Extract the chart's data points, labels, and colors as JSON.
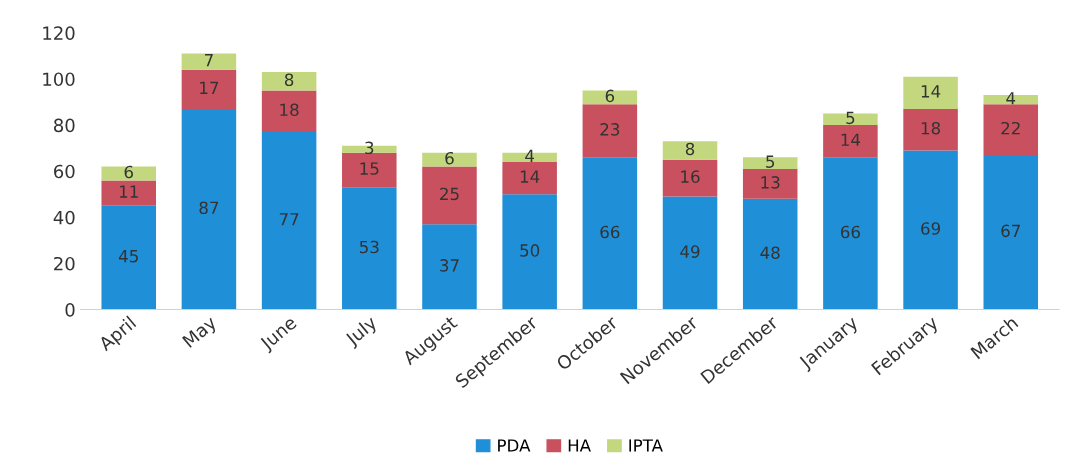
{
  "chart_data": {
    "type": "bar",
    "stacked": true,
    "categories": [
      "April",
      "May",
      "June",
      "July",
      "August",
      "September",
      "October",
      "November",
      "December",
      "January",
      "February",
      "March"
    ],
    "series": [
      {
        "name": "PDA",
        "color": "#1f8fd8",
        "values": [
          45,
          87,
          77,
          53,
          37,
          50,
          66,
          49,
          48,
          66,
          69,
          67
        ]
      },
      {
        "name": "HA",
        "color": "#c9505e",
        "values": [
          11,
          17,
          18,
          15,
          25,
          14,
          23,
          16,
          13,
          14,
          18,
          22
        ]
      },
      {
        "name": "IPTA",
        "color": "#c3d77f",
        "values": [
          6,
          7,
          8,
          3,
          6,
          4,
          6,
          8,
          5,
          5,
          14,
          4
        ]
      }
    ],
    "ylim": [
      0,
      120
    ],
    "yticks": [
      0,
      20,
      40,
      60,
      80,
      100,
      120
    ],
    "data_labels": true,
    "legend": "bottom",
    "grid": false
  }
}
